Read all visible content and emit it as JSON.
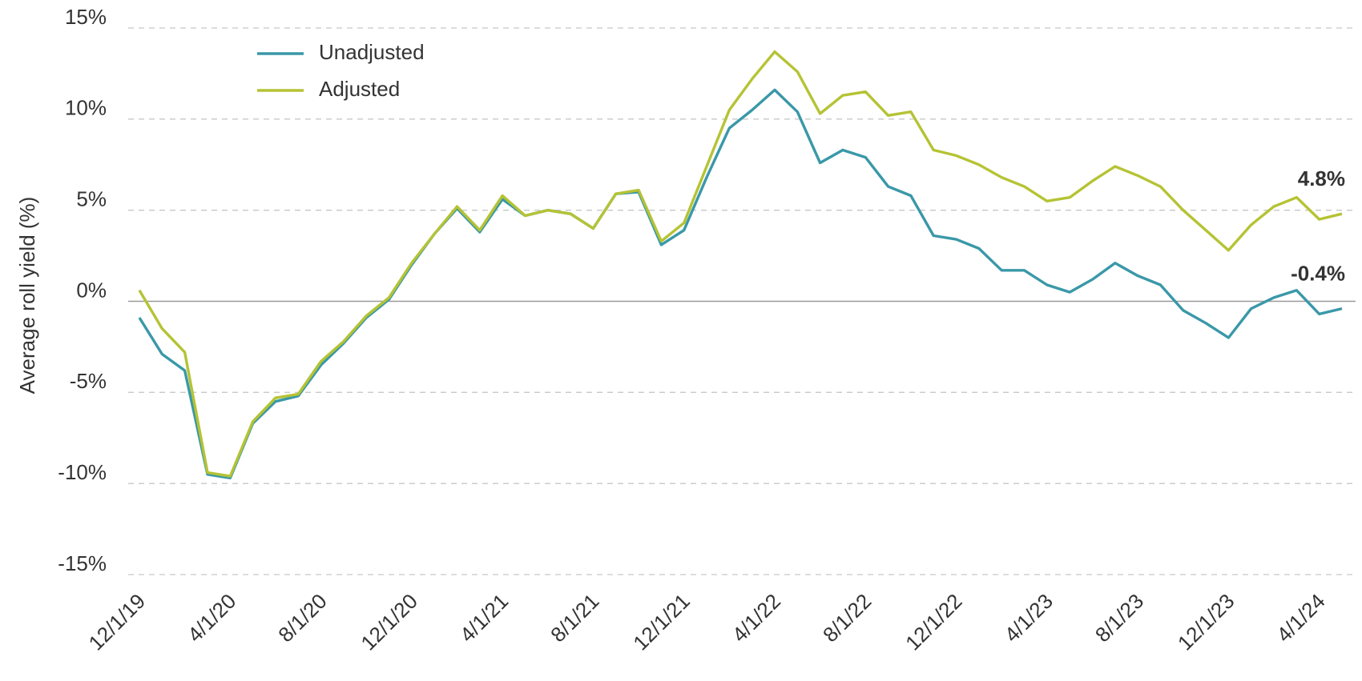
{
  "chart_data": {
    "type": "line",
    "y_label": "Average roll yield (%)",
    "categories": [
      "12/1/19",
      null,
      null,
      null,
      "4/1/20",
      null,
      null,
      null,
      "8/1/20",
      null,
      null,
      null,
      "12/1/20",
      null,
      null,
      null,
      "4/1/21",
      null,
      null,
      null,
      "8/1/21",
      null,
      null,
      null,
      "12/1/21",
      null,
      null,
      null,
      "4/1/22",
      null,
      null,
      null,
      "8/1/22",
      null,
      null,
      null,
      "12/1/22",
      null,
      null,
      null,
      "4/1/23",
      null,
      null,
      null,
      "8/1/23",
      null,
      null,
      null,
      "12/1/23",
      null,
      null,
      null,
      "4/1/24",
      null
    ],
    "series": [
      {
        "name": "Unadjusted",
        "color": "#3a98a8",
        "label_color": "#2e7d8c",
        "values": [
          -0.9,
          -2.9,
          -3.8,
          -9.5,
          -9.7,
          -6.7,
          -5.5,
          -5.2,
          -3.5,
          -2.3,
          -0.9,
          0.1,
          2.0,
          3.7,
          5.1,
          3.8,
          5.6,
          4.7,
          5.0,
          4.8,
          4.0,
          5.9,
          6.0,
          3.1,
          3.9,
          6.8,
          9.5,
          10.5,
          11.6,
          10.4,
          7.6,
          8.3,
          7.9,
          6.3,
          5.8,
          3.6,
          3.4,
          2.9,
          1.7,
          1.7,
          0.9,
          0.5,
          1.2,
          2.1,
          1.4,
          0.9,
          -0.5,
          -1.2,
          -2.0,
          -0.4,
          0.2,
          0.6,
          -0.7,
          -0.4
        ],
        "value_labels": [
          null,
          null,
          null,
          null,
          null,
          null,
          null,
          null,
          null,
          null,
          null,
          null,
          null,
          null,
          null,
          null,
          null,
          null,
          null,
          null,
          null,
          null,
          null,
          null,
          null,
          null,
          null,
          null,
          null,
          null,
          null,
          null,
          null,
          null,
          null,
          null,
          null,
          null,
          null,
          null,
          null,
          null,
          null,
          null,
          null,
          null,
          null,
          null,
          null,
          null,
          null,
          null,
          null,
          "-0.4%"
        ]
      },
      {
        "name": "Adjusted",
        "color": "#b5c334",
        "label_color": "#8f9c22",
        "values": [
          0.6,
          -1.5,
          -2.8,
          -9.4,
          -9.6,
          -6.6,
          -5.3,
          -5.1,
          -3.3,
          -2.2,
          -0.8,
          0.2,
          2.1,
          3.7,
          5.2,
          3.9,
          5.8,
          4.7,
          5.0,
          4.8,
          4.0,
          5.9,
          6.1,
          3.3,
          4.3,
          7.4,
          10.5,
          12.2,
          13.7,
          12.6,
          10.3,
          11.3,
          11.5,
          10.2,
          10.4,
          8.3,
          8.0,
          7.5,
          6.8,
          6.3,
          5.5,
          5.7,
          6.6,
          7.4,
          6.9,
          6.3,
          5.0,
          3.9,
          2.8,
          4.2,
          5.2,
          5.7,
          4.5,
          4.8
        ],
        "value_labels": [
          null,
          null,
          null,
          null,
          null,
          null,
          null,
          null,
          null,
          null,
          null,
          null,
          null,
          null,
          null,
          null,
          null,
          null,
          null,
          null,
          null,
          null,
          null,
          null,
          null,
          null,
          null,
          null,
          null,
          null,
          null,
          null,
          null,
          null,
          null,
          null,
          null,
          null,
          null,
          null,
          null,
          null,
          null,
          null,
          null,
          null,
          null,
          null,
          null,
          null,
          null,
          null,
          null,
          "4.8%"
        ]
      }
    ],
    "ylim": [
      -15,
      15
    ],
    "yticks": [
      {
        "value": 15,
        "label": "15%"
      },
      {
        "value": 10,
        "label": "10%"
      },
      {
        "value": 5,
        "label": "5%"
      },
      {
        "value": 0,
        "label": "0%"
      },
      {
        "value": -5,
        "label": "-5%"
      },
      {
        "value": -10,
        "label": "-10%"
      },
      {
        "value": -15,
        "label": "-15%"
      }
    ],
    "grid": true,
    "legend": "top-left"
  }
}
